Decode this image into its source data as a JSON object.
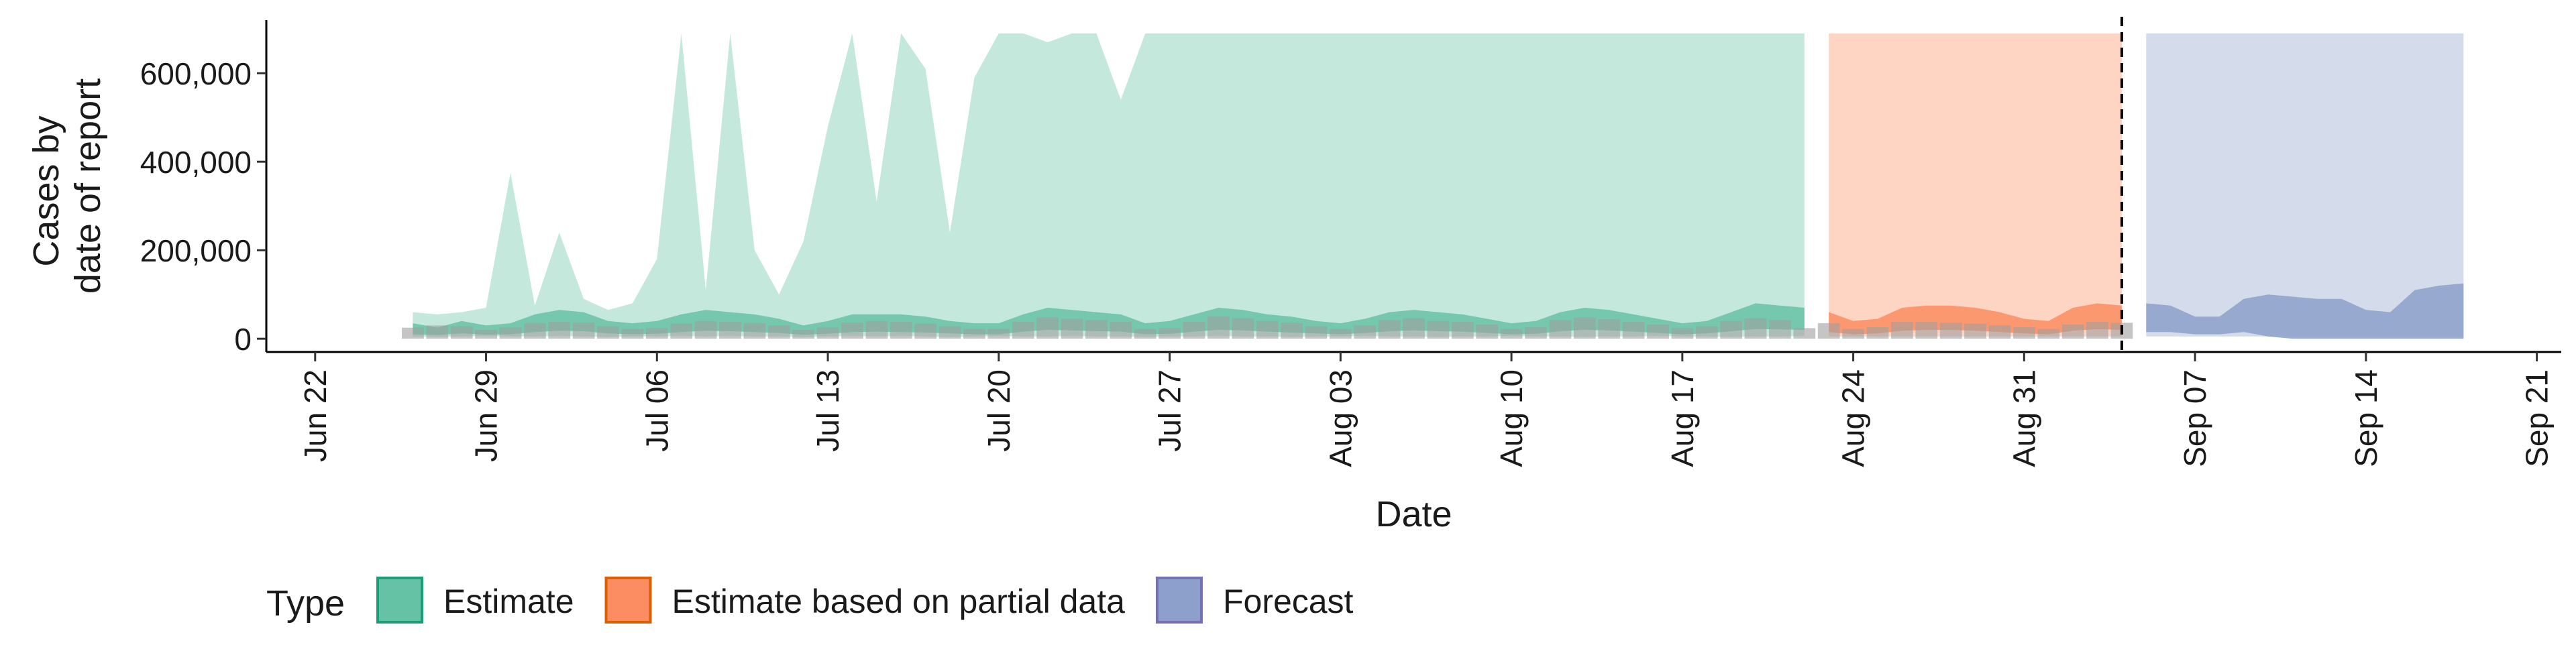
{
  "chart_data": {
    "type": "area",
    "xlabel": "Date",
    "ylabel": [
      "Cases by",
      "date of report"
    ],
    "xlim": [
      "2020-06-20",
      "2020-09-22"
    ],
    "ylim": [
      -30000,
      720000
    ],
    "x_ticks": [
      "2020-06-22",
      "2020-06-29",
      "2020-07-06",
      "2020-07-13",
      "2020-07-20",
      "2020-07-27",
      "2020-08-03",
      "2020-08-10",
      "2020-08-17",
      "2020-08-24",
      "2020-08-31",
      "2020-09-07",
      "2020-09-14",
      "2020-09-21"
    ],
    "x_tick_labels": [
      "Jun 22",
      "Jun 29",
      "Jul 06",
      "Jul 13",
      "Jul 20",
      "Jul 27",
      "Aug 03",
      "Aug 10",
      "Aug 17",
      "Aug 24",
      "Aug 31",
      "Sep 07",
      "Sep 14",
      "Sep 21"
    ],
    "y_ticks": [
      0,
      200000,
      400000,
      600000
    ],
    "y_tick_labels": [
      "0",
      "200,000",
      "400,000",
      "600,000"
    ],
    "grid": false,
    "legend": {
      "title": "Type",
      "position": "bottom",
      "items": [
        {
          "label": "Estimate",
          "fill": "#66c2a5",
          "stroke": "#1b9e77"
        },
        {
          "label": "Estimate based on partial data",
          "fill": "#fc8d62",
          "stroke": "#d95f02"
        },
        {
          "label": "Forecast",
          "fill": "#8da0cb",
          "stroke": "#7570b3"
        }
      ]
    },
    "colors": {
      "Estimate": "#66c2a5",
      "Estimate based on partial data": "#fc8d62",
      "Forecast": "#8da0cb",
      "reported_cases": "#9e9e9e"
    },
    "vline_date": "2020-09-04",
    "series": [
      {
        "name": "Estimate",
        "x": [
          "2020-06-26",
          "2020-06-27",
          "2020-06-28",
          "2020-06-29",
          "2020-06-30",
          "2020-07-01",
          "2020-07-02",
          "2020-07-03",
          "2020-07-04",
          "2020-07-05",
          "2020-07-06",
          "2020-07-07",
          "2020-07-08",
          "2020-07-09",
          "2020-07-10",
          "2020-07-11",
          "2020-07-12",
          "2020-07-13",
          "2020-07-14",
          "2020-07-15",
          "2020-07-16",
          "2020-07-17",
          "2020-07-18",
          "2020-07-19",
          "2020-07-20",
          "2020-07-21",
          "2020-07-22",
          "2020-07-23",
          "2020-07-24",
          "2020-07-25",
          "2020-07-26",
          "2020-07-27",
          "2020-07-28",
          "2020-07-29",
          "2020-07-30",
          "2020-07-31",
          "2020-08-01",
          "2020-08-02",
          "2020-08-03",
          "2020-08-04",
          "2020-08-05",
          "2020-08-06",
          "2020-08-07",
          "2020-08-08",
          "2020-08-09",
          "2020-08-10",
          "2020-08-11",
          "2020-08-12",
          "2020-08-13",
          "2020-08-14",
          "2020-08-15",
          "2020-08-16",
          "2020-08-17",
          "2020-08-18",
          "2020-08-19",
          "2020-08-20",
          "2020-08-21",
          "2020-08-22"
        ],
        "outer_upper": [
          60000,
          55000,
          60000,
          70000,
          375000,
          75000,
          240000,
          90000,
          65000,
          80000,
          180000,
          690000,
          110000,
          690000,
          200000,
          100000,
          220000,
          480000,
          690000,
          310000,
          690000,
          610000,
          240000,
          590000,
          690000,
          690000,
          670000,
          690000,
          690000,
          540000,
          690000,
          690000,
          690000,
          690000,
          690000,
          690000,
          690000,
          690000,
          690000,
          690000,
          690000,
          690000,
          690000,
          690000,
          690000,
          690000,
          690000,
          690000,
          690000,
          690000,
          690000,
          690000,
          690000,
          690000,
          690000,
          690000,
          690000,
          690000
        ],
        "outer_lower": [
          5000,
          4000,
          5000,
          6000,
          5000,
          5000,
          6000,
          5000,
          4000,
          5000,
          5000,
          6000,
          5000,
          6000,
          5000,
          5000,
          4000,
          5000,
          6000,
          5000,
          6000,
          5000,
          4000,
          5000,
          6000,
          5000,
          5000,
          6000,
          5000,
          5000,
          4000,
          5000,
          5000,
          6000,
          5000,
          5000,
          4000,
          5000,
          5000,
          6000,
          5000,
          5000,
          4000,
          5000,
          5000,
          6000,
          5000,
          5000,
          4000,
          5000,
          5000,
          6000,
          5000,
          5000,
          4000,
          5000,
          5000,
          6000
        ],
        "inner_upper": [
          35000,
          25000,
          40000,
          30000,
          35000,
          55000,
          65000,
          60000,
          40000,
          35000,
          40000,
          55000,
          65000,
          60000,
          55000,
          45000,
          30000,
          40000,
          55000,
          55000,
          55000,
          50000,
          40000,
          35000,
          35000,
          55000,
          70000,
          65000,
          60000,
          55000,
          35000,
          40000,
          55000,
          70000,
          65000,
          55000,
          50000,
          40000,
          35000,
          45000,
          60000,
          65000,
          60000,
          55000,
          45000,
          35000,
          40000,
          60000,
          70000,
          65000,
          55000,
          45000,
          35000,
          40000,
          60000,
          80000,
          75000,
          70000
        ],
        "inner_lower": [
          10000,
          8000,
          12000,
          9000,
          10000,
          15000,
          18000,
          17000,
          12000,
          10000,
          11000,
          15000,
          18000,
          17000,
          15000,
          13000,
          9000,
          11000,
          15000,
          16000,
          15000,
          14000,
          12000,
          10000,
          10000,
          16000,
          20000,
          19000,
          17000,
          16000,
          10000,
          11000,
          16000,
          20000,
          19000,
          16000,
          14000,
          12000,
          10000,
          13000,
          17000,
          19000,
          17000,
          16000,
          13000,
          10000,
          11000,
          17000,
          20000,
          19000,
          16000,
          13000,
          10000,
          12000,
          17000,
          22000,
          21000,
          20000
        ]
      },
      {
        "name": "Estimate based on partial data",
        "x": [
          "2020-08-23",
          "2020-08-24",
          "2020-08-25",
          "2020-08-26",
          "2020-08-27",
          "2020-08-28",
          "2020-08-29",
          "2020-08-30",
          "2020-08-31",
          "2020-09-01",
          "2020-09-02",
          "2020-09-03",
          "2020-09-04"
        ],
        "outer_upper": [
          690000,
          690000,
          690000,
          690000,
          690000,
          690000,
          690000,
          690000,
          690000,
          690000,
          690000,
          690000,
          690000
        ],
        "outer_lower": [
          5000,
          5000,
          5000,
          5000,
          5000,
          5000,
          5000,
          5000,
          5000,
          5000,
          5000,
          5000,
          5000
        ],
        "inner_upper": [
          60000,
          40000,
          45000,
          70000,
          75000,
          75000,
          70000,
          60000,
          45000,
          40000,
          70000,
          80000,
          75000
        ],
        "inner_lower": [
          15000,
          10000,
          12000,
          18000,
          20000,
          20000,
          18000,
          15000,
          12000,
          10000,
          18000,
          22000,
          20000
        ]
      },
      {
        "name": "Forecast",
        "x": [
          "2020-09-05",
          "2020-09-06",
          "2020-09-07",
          "2020-09-08",
          "2020-09-09",
          "2020-09-10",
          "2020-09-11",
          "2020-09-12",
          "2020-09-13",
          "2020-09-14",
          "2020-09-15",
          "2020-09-16",
          "2020-09-17",
          "2020-09-18"
        ],
        "outer_upper": [
          690000,
          690000,
          690000,
          690000,
          690000,
          690000,
          690000,
          690000,
          690000,
          690000,
          690000,
          690000,
          690000,
          690000
        ],
        "outer_lower": [
          5000,
          5000,
          5000,
          5000,
          5000,
          5000,
          5000,
          5000,
          5000,
          5000,
          5000,
          5000,
          5000,
          5000
        ],
        "inner_upper": [
          80000,
          75000,
          50000,
          50000,
          90000,
          100000,
          95000,
          90000,
          90000,
          65000,
          60000,
          110000,
          120000,
          125000
        ],
        "inner_lower": [
          15000,
          15000,
          10000,
          10000,
          15000,
          5000,
          0,
          0,
          0,
          0,
          0,
          0,
          0,
          0
        ]
      }
    ],
    "reported_cases": {
      "name": "Reported cases",
      "x": [
        "2020-06-26",
        "2020-06-27",
        "2020-06-28",
        "2020-06-29",
        "2020-06-30",
        "2020-07-01",
        "2020-07-02",
        "2020-07-03",
        "2020-07-04",
        "2020-07-05",
        "2020-07-06",
        "2020-07-07",
        "2020-07-08",
        "2020-07-09",
        "2020-07-10",
        "2020-07-11",
        "2020-07-12",
        "2020-07-13",
        "2020-07-14",
        "2020-07-15",
        "2020-07-16",
        "2020-07-17",
        "2020-07-18",
        "2020-07-19",
        "2020-07-20",
        "2020-07-21",
        "2020-07-22",
        "2020-07-23",
        "2020-07-24",
        "2020-07-25",
        "2020-07-26",
        "2020-07-27",
        "2020-07-28",
        "2020-07-29",
        "2020-07-30",
        "2020-07-31",
        "2020-08-01",
        "2020-08-02",
        "2020-08-03",
        "2020-08-04",
        "2020-08-05",
        "2020-08-06",
        "2020-08-07",
        "2020-08-08",
        "2020-08-09",
        "2020-08-10",
        "2020-08-11",
        "2020-08-12",
        "2020-08-13",
        "2020-08-14",
        "2020-08-15",
        "2020-08-16",
        "2020-08-17",
        "2020-08-18",
        "2020-08-19",
        "2020-08-20",
        "2020-08-21",
        "2020-08-22",
        "2020-08-23",
        "2020-08-24",
        "2020-08-25",
        "2020-08-26",
        "2020-08-27",
        "2020-08-28",
        "2020-08-29",
        "2020-08-30",
        "2020-08-31",
        "2020-09-01",
        "2020-09-02",
        "2020-09-03",
        "2020-09-04"
      ],
      "values": [
        25000,
        30000,
        28000,
        20000,
        25000,
        35000,
        38000,
        36000,
        28000,
        22000,
        24000,
        34000,
        40000,
        38000,
        35000,
        30000,
        20000,
        25000,
        36000,
        40000,
        38000,
        34000,
        28000,
        22000,
        22000,
        38000,
        48000,
        45000,
        42000,
        38000,
        22000,
        24000,
        38000,
        50000,
        46000,
        40000,
        36000,
        28000,
        22000,
        30000,
        42000,
        46000,
        40000,
        38000,
        32000,
        22000,
        26000,
        42000,
        48000,
        44000,
        38000,
        32000,
        24000,
        28000,
        40000,
        46000,
        42000,
        24000,
        35000,
        22000,
        26000,
        38000,
        38000,
        36000,
        34000,
        30000,
        26000,
        22000,
        32000,
        38000,
        36000
      ]
    }
  }
}
